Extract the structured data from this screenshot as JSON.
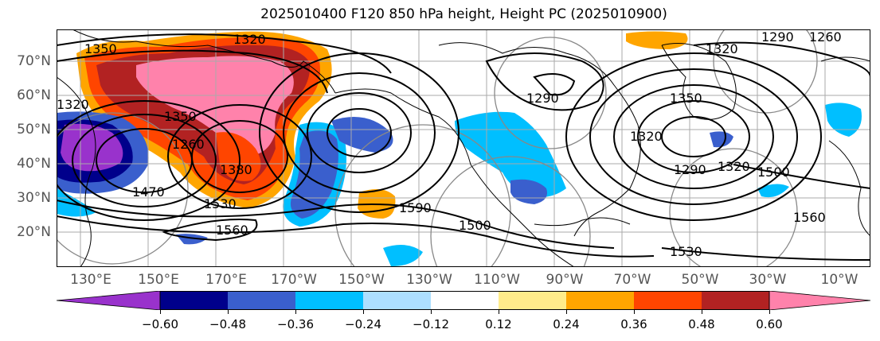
{
  "title": "2025010400 F120 850 hPa height, Height PC (2025010900)",
  "lat_labels": [
    "70°N",
    "60°N",
    "50°N",
    "40°N",
    "30°N",
    "20°N"
  ],
  "lon_labels": [
    "130°E",
    "150°E",
    "170°E",
    "170°W",
    "150°W",
    "130°W",
    "110°W",
    "90°W",
    "70°W",
    "50°W",
    "30°W",
    "10°W"
  ],
  "contour_labels": [
    "1320",
    "1350",
    "1350",
    "1320",
    "1260",
    "1380",
    "1470",
    "1530",
    "1560",
    "1590",
    "1500",
    "1530",
    "1560",
    "1500",
    "1290",
    "1320",
    "1350",
    "1320",
    "1290",
    "1260",
    "1290",
    "1320"
  ],
  "colorbar": {
    "tick_labels": [
      "−0.60",
      "−0.48",
      "−0.36",
      "−0.24",
      "−0.12",
      "0.12",
      "0.24",
      "0.36",
      "0.48",
      "0.60"
    ],
    "colors": [
      "#9932CC",
      "#00008B",
      "#3A5FCD",
      "#00BFFF",
      "#ADDFFF",
      "#FFFFFF",
      "#FFEC8B",
      "#FFA500",
      "#FF4500",
      "#B22222",
      "#FF82AB"
    ]
  }
}
